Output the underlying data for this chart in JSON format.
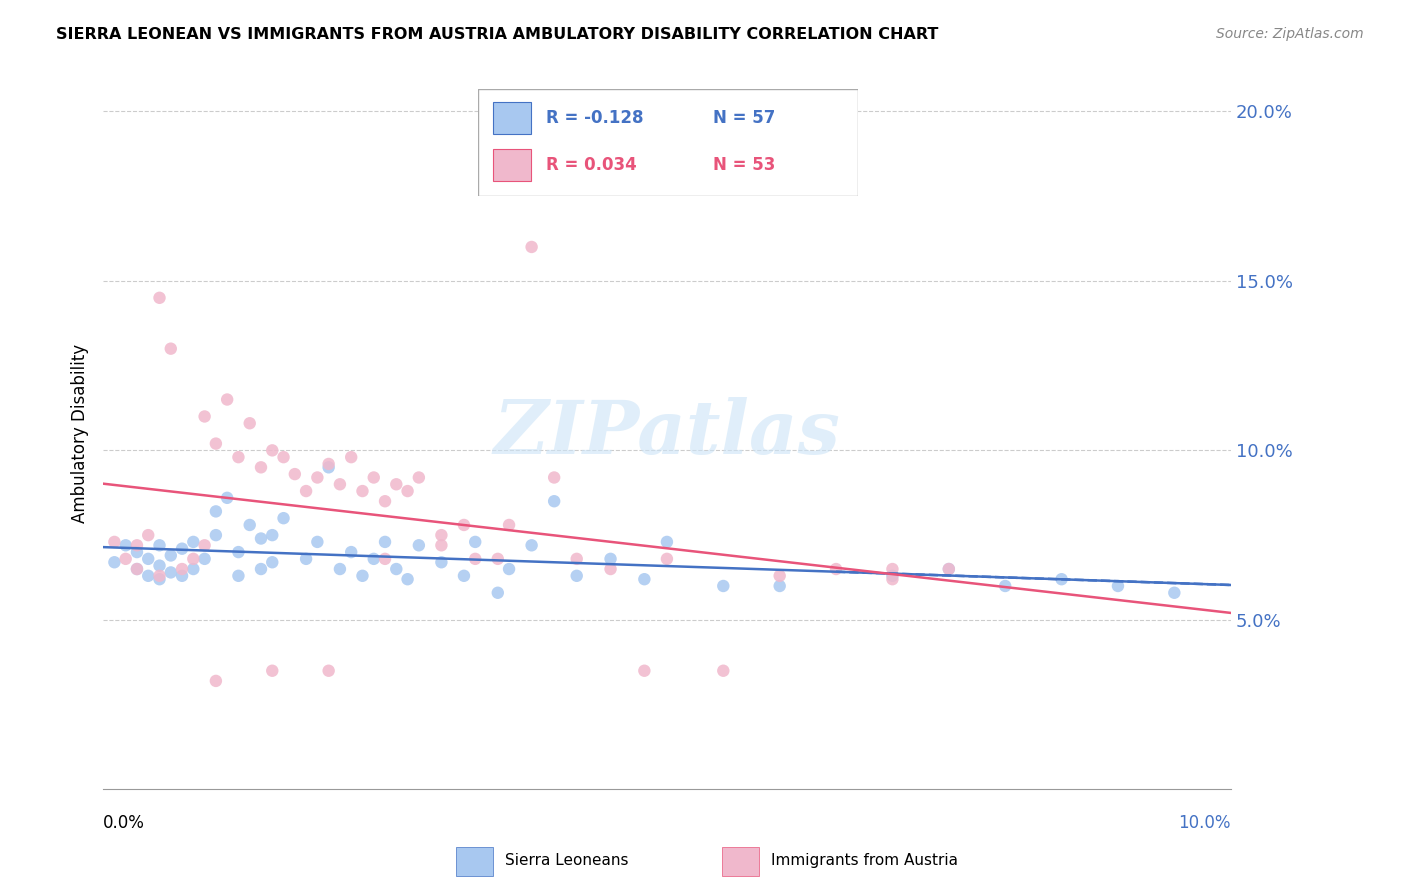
{
  "title": "SIERRA LEONEAN VS IMMIGRANTS FROM AUSTRIA AMBULATORY DISABILITY CORRELATION CHART",
  "source": "Source: ZipAtlas.com",
  "ylabel": "Ambulatory Disability",
  "xmin": 0.0,
  "xmax": 0.1,
  "ymin": 0.0,
  "ymax": 0.21,
  "yticks": [
    0.05,
    0.1,
    0.15,
    0.2
  ],
  "ytick_labels": [
    "5.0%",
    "10.0%",
    "15.0%",
    "20.0%"
  ],
  "sierra_color": "#a8c8f0",
  "austria_color": "#f0b8cc",
  "sierra_line_color": "#4472c4",
  "austria_line_color": "#e8547a",
  "sierra_R": -0.128,
  "sierra_N": 57,
  "austria_R": 0.034,
  "austria_N": 53,
  "sierra_x": [
    0.001,
    0.002,
    0.003,
    0.003,
    0.004,
    0.004,
    0.005,
    0.005,
    0.005,
    0.006,
    0.006,
    0.007,
    0.007,
    0.008,
    0.008,
    0.009,
    0.01,
    0.01,
    0.011,
    0.012,
    0.012,
    0.013,
    0.014,
    0.014,
    0.015,
    0.015,
    0.016,
    0.018,
    0.019,
    0.02,
    0.021,
    0.022,
    0.023,
    0.024,
    0.025,
    0.026,
    0.027,
    0.028,
    0.03,
    0.032,
    0.033,
    0.035,
    0.036,
    0.038,
    0.04,
    0.042,
    0.045,
    0.048,
    0.05,
    0.055,
    0.06,
    0.07,
    0.075,
    0.08,
    0.085,
    0.09,
    0.095
  ],
  "sierra_y": [
    0.067,
    0.072,
    0.065,
    0.07,
    0.063,
    0.068,
    0.062,
    0.066,
    0.072,
    0.064,
    0.069,
    0.063,
    0.071,
    0.065,
    0.073,
    0.068,
    0.082,
    0.075,
    0.086,
    0.063,
    0.07,
    0.078,
    0.065,
    0.074,
    0.067,
    0.075,
    0.08,
    0.068,
    0.073,
    0.095,
    0.065,
    0.07,
    0.063,
    0.068,
    0.073,
    0.065,
    0.062,
    0.072,
    0.067,
    0.063,
    0.073,
    0.058,
    0.065,
    0.072,
    0.085,
    0.063,
    0.068,
    0.062,
    0.073,
    0.06,
    0.06,
    0.063,
    0.065,
    0.06,
    0.062,
    0.06,
    0.058
  ],
  "austria_x": [
    0.001,
    0.002,
    0.003,
    0.003,
    0.004,
    0.005,
    0.005,
    0.006,
    0.007,
    0.008,
    0.009,
    0.009,
    0.01,
    0.011,
    0.012,
    0.013,
    0.014,
    0.015,
    0.016,
    0.017,
    0.018,
    0.019,
    0.02,
    0.021,
    0.022,
    0.023,
    0.024,
    0.025,
    0.026,
    0.027,
    0.028,
    0.03,
    0.032,
    0.033,
    0.035,
    0.036,
    0.038,
    0.04,
    0.042,
    0.045,
    0.048,
    0.05,
    0.055,
    0.06,
    0.065,
    0.07,
    0.075,
    0.03,
    0.025,
    0.02,
    0.015,
    0.01,
    0.07
  ],
  "austria_y": [
    0.073,
    0.068,
    0.065,
    0.072,
    0.075,
    0.063,
    0.145,
    0.13,
    0.065,
    0.068,
    0.072,
    0.11,
    0.102,
    0.115,
    0.098,
    0.108,
    0.095,
    0.1,
    0.098,
    0.093,
    0.088,
    0.092,
    0.096,
    0.09,
    0.098,
    0.088,
    0.092,
    0.085,
    0.09,
    0.088,
    0.092,
    0.075,
    0.078,
    0.068,
    0.068,
    0.078,
    0.16,
    0.092,
    0.068,
    0.065,
    0.035,
    0.068,
    0.035,
    0.063,
    0.065,
    0.065,
    0.065,
    0.072,
    0.068,
    0.035,
    0.035,
    0.032,
    0.062
  ]
}
